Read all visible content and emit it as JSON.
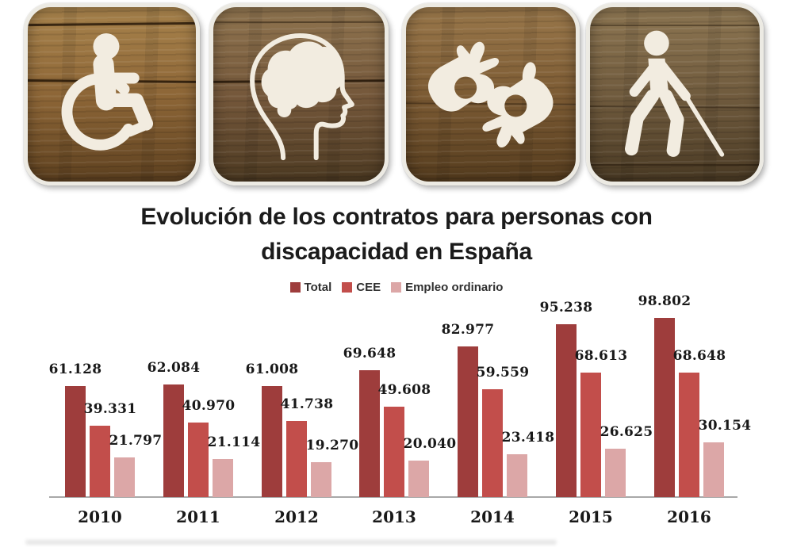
{
  "title": {
    "line1": "Evolución de los contratos para personas con",
    "line2": "discapacidad en España",
    "color": "#1B1B1B"
  },
  "header_tiles": [
    {
      "name": "wheelchair",
      "colors": {
        "light": "#A8834C",
        "mid": "#8C6536",
        "dark": "#5E4120"
      }
    },
    {
      "name": "cognitive",
      "colors": {
        "light": "#8F744F",
        "mid": "#74573A",
        "dark": "#4D3A22"
      }
    },
    {
      "name": "sign-language",
      "colors": {
        "light": "#99774A",
        "mid": "#7B5A33",
        "dark": "#553C1E"
      }
    },
    {
      "name": "blind",
      "colors": {
        "light": "#8D7652",
        "mid": "#6F5A3D",
        "dark": "#4A3A24"
      }
    }
  ],
  "chart_data": {
    "type": "bar",
    "title": "Evolución de los contratos para personas con discapacidad en España",
    "categories": [
      "2010",
      "2011",
      "2012",
      "2013",
      "2014",
      "2015",
      "2016"
    ],
    "series": [
      {
        "name": "Total",
        "color": "#9E3D3C",
        "values": [
          61128,
          62084,
          61008,
          69648,
          82977,
          95238,
          98802
        ],
        "labels": [
          "61.128",
          "62.084",
          "61.008",
          "69.648",
          "82.977",
          "95.238",
          "98.802"
        ]
      },
      {
        "name": "CEE",
        "color": "#C24E4B",
        "values": [
          39331,
          40970,
          41738,
          49608,
          59559,
          68613,
          68648
        ],
        "labels": [
          "39.331",
          "40.970",
          "41.738",
          "49.608",
          "59.559",
          "68.613",
          "68.648"
        ]
      },
      {
        "name": "Empleo ordinario",
        "color": "#DCA7A7",
        "values": [
          21797,
          21114,
          19270,
          20040,
          23418,
          26625,
          30154
        ],
        "labels": [
          "21.797",
          "21.114",
          "19.270",
          "20.040",
          "23.418",
          "26.625",
          "30.154"
        ]
      }
    ],
    "ylim": [
      0,
      100000
    ],
    "grid": false,
    "legend_position": "top-center",
    "axis_color": "#A8A8A8",
    "label_color": "#191919"
  }
}
